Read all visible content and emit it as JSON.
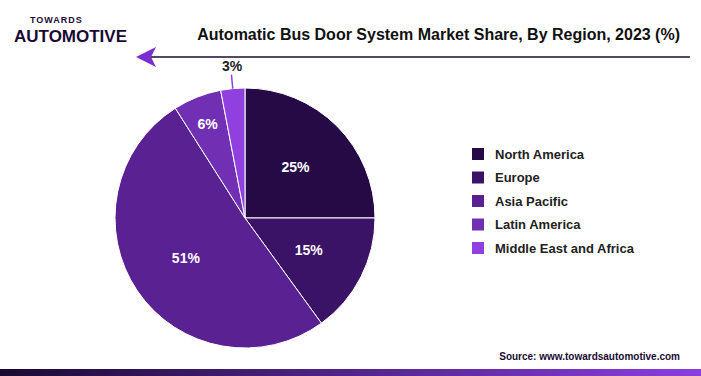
{
  "chart_data": {
    "type": "pie",
    "title": "Automatic Bus Door System Market Share, By Region, 2023 (%)",
    "categories": [
      "North America",
      "Europe",
      "Asia Pacific",
      "Latin America",
      "Middle East and Africa"
    ],
    "values": [
      25,
      15,
      51,
      6,
      3
    ],
    "value_labels": [
      "25%",
      "15%",
      "51%",
      "6%",
      "3%"
    ],
    "colors": [
      "#250a45",
      "#3a1266",
      "#5a2192",
      "#7130b3",
      "#9140e0"
    ],
    "data_labels": true,
    "legend": "right",
    "annotations": [
      "TOWARDS",
      "AUTOMOTIVE",
      "Source: www.towardsautomotive.com"
    ]
  }
}
